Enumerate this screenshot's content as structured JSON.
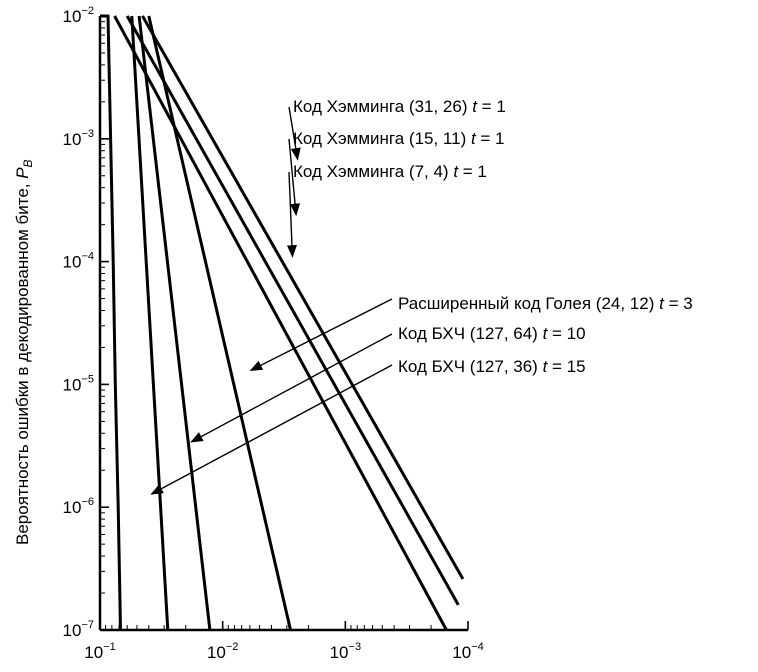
{
  "chart_data": {
    "type": "line",
    "title": "",
    "xlabel": "",
    "ylabel": "Вероятность ошибки в декодированном бите, ",
    "ylabel_symbol": "P",
    "ylabel_subscript": "B",
    "x_scale": "log",
    "y_scale": "log",
    "xlim": [
      0.1,
      0.0001
    ],
    "ylim": [
      1e-07,
      0.01
    ],
    "grid": false,
    "x_ticks": [
      {
        "base": "10",
        "exp": "−1",
        "value": 0.1
      },
      {
        "base": "10",
        "exp": "−2",
        "value": 0.01
      },
      {
        "base": "10",
        "exp": "−3",
        "value": 0.001
      },
      {
        "base": "10",
        "exp": "−4",
        "value": 0.0001
      }
    ],
    "y_ticks": [
      {
        "base": "10",
        "exp": "−2",
        "value": 0.01
      },
      {
        "base": "10",
        "exp": "−3",
        "value": 0.001
      },
      {
        "base": "10",
        "exp": "−4",
        "value": 0.0001
      },
      {
        "base": "10",
        "exp": "−5",
        "value": 1e-05
      },
      {
        "base": "10",
        "exp": "−6",
        "value": 1e-06
      },
      {
        "base": "10",
        "exp": "−7",
        "value": 1e-07
      }
    ],
    "series": [
      {
        "name": "Код Хэмминга (31, 26) t = 1",
        "points": [
          {
            "x": 0.045,
            "y": 0.01
          },
          {
            "x": 0.00011,
            "y": 2.6e-07
          }
        ]
      },
      {
        "name": "Код Хэмминга (15, 11) t = 1",
        "points": [
          {
            "x": 0.06,
            "y": 0.01
          },
          {
            "x": 0.00012,
            "y": 1.6e-07
          }
        ]
      },
      {
        "name": "Код Хэмминга (7, 4) t = 1",
        "points": [
          {
            "x": 0.076,
            "y": 0.01
          },
          {
            "x": 0.00015,
            "y": 1e-07
          }
        ]
      },
      {
        "name": "Расширенный код Голея (24, 12) t = 3",
        "points": [
          {
            "x": 0.04,
            "y": 0.01
          },
          {
            "x": 0.0028,
            "y": 1e-07
          }
        ]
      },
      {
        "name": "Код БХЧ (127, 64) t = 10",
        "points": [
          {
            "x": 0.048,
            "y": 0.01
          },
          {
            "x": 0.0127,
            "y": 1e-07
          }
        ]
      },
      {
        "name": "Код БХЧ (127, 36) t = 15",
        "points": [
          {
            "x": 0.055,
            "y": 0.01
          },
          {
            "x": 0.028,
            "y": 1e-07
          }
        ]
      }
    ],
    "uncoded_curve": {
      "points": [
        {
          "x": 0.1,
          "y": 0.01
        },
        {
          "x": 0.086,
          "y": 0.01
        },
        {
          "x": 0.082,
          "y": 0.001
        },
        {
          "x": 0.078,
          "y": 0.0001
        },
        {
          "x": 0.075,
          "y": 1e-05
        },
        {
          "x": 0.071,
          "y": 1e-06
        },
        {
          "x": 0.068,
          "y": 1e-07
        }
      ]
    },
    "annotations": [
      {
        "label_pre": "Код Хэмминга (31, 26) ",
        "label_t": "t",
        "label_post": " = 1",
        "series": "Код Хэмминга (31, 26) t = 1",
        "target_x": 0.00245,
        "target_y": 0.00068
      },
      {
        "label_pre": "Код Хэмминга (15, 11) ",
        "label_t": "t",
        "label_post": " = 1",
        "series": "Код Хэмминга (15, 11) t = 1",
        "target_x": 0.00252,
        "target_y": 0.00024
      },
      {
        "label_pre": "Код Хэмминга  (7, 4) ",
        "label_t": "t",
        "label_post": " = 1",
        "series": "Код Хэмминга (7, 4) t = 1",
        "target_x": 0.0027,
        "target_y": 0.00011
      },
      {
        "label_pre": "Расширенный код Голея (24, 12) ",
        "label_t": "t",
        "label_post": " = 3",
        "series": "Расширенный код Голея (24, 12) t = 3",
        "target_x": 0.0059,
        "target_y": 1.3e-05
      },
      {
        "label_pre": "Код БХЧ (127, 64) ",
        "label_t": "t",
        "label_post": " = 10",
        "series": "Код БХЧ (127, 64) t = 10",
        "target_x": 0.018,
        "target_y": 3.4e-06
      },
      {
        "label_pre": "Код БХЧ (127, 36) ",
        "label_t": "t",
        "label_post": " = 15",
        "series": "Код БХЧ (127, 36) t = 15",
        "target_x": 0.038,
        "target_y": 1.28e-06
      }
    ]
  }
}
